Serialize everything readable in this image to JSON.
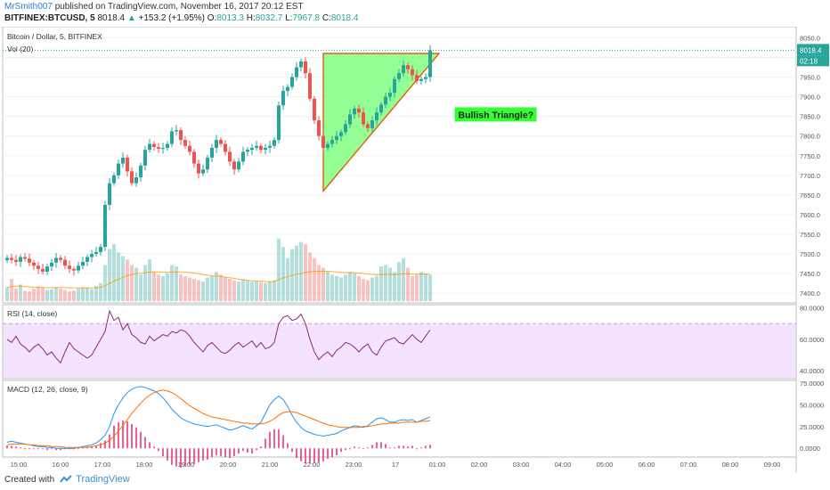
{
  "header": {
    "username": "MrSmith007",
    "published_text": "published on TradingView.com, November 16, 2017 20:12 EST",
    "symbol": "BITFINEX:BTCUSD, 5",
    "last": "8018.4",
    "change": "+153.2 (+1.95%)",
    "o_label": "O:",
    "o_value": "8013.3",
    "h_label": "H:",
    "h_value": "8032.7",
    "l_label": "L:",
    "l_value": "7967.8",
    "c_label": "C:",
    "c_value": "8018.4"
  },
  "footer": {
    "created_with": "Created with",
    "brand": "TradingView"
  },
  "colors": {
    "up": "#26a69a",
    "down": "#ef5350",
    "rsi": "#8b2a7e",
    "rsi_band": "#f3e3ff",
    "macd": "#2196f3",
    "signal": "#ff6d00",
    "hist": "#e91e63",
    "triangle_fill": "#66ff66",
    "triangle_edge": "#e65100",
    "annotation_bg": "#33ff33"
  },
  "chart_data": [
    {
      "type": "candlestick",
      "title": "Bitcoin / Dollar, 5, BITFINEX",
      "volume_label": "Vol (20)",
      "ylim": [
        7380,
        8060
      ],
      "y_ticks": [
        "8050.0",
        "8000.0",
        "7950.0",
        "7900.0",
        "7850.0",
        "7800.0",
        "7750.0",
        "7700.0",
        "7650.0",
        "7600.0",
        "7550.0",
        "7500.0",
        "7450.0",
        "7400.0"
      ],
      "last_price_label": "8018.4",
      "countdown_label": "02:18",
      "x_ticks": [
        "15:00",
        "16:00",
        "17:00",
        "18:00",
        "19:00",
        "20:00",
        "21:00",
        "22:00",
        "23:00",
        "17",
        "01:00",
        "02:00",
        "03:00",
        "04:00",
        "05:00",
        "06:00",
        "07:00",
        "08:00",
        "09:00"
      ],
      "close": [
        7490,
        7485,
        7480,
        7492,
        7488,
        7478,
        7470,
        7462,
        7455,
        7468,
        7478,
        7490,
        7485,
        7470,
        7462,
        7458,
        7470,
        7480,
        7492,
        7500,
        7505,
        7518,
        7625,
        7680,
        7700,
        7730,
        7745,
        7710,
        7680,
        7695,
        7725,
        7765,
        7780,
        7772,
        7768,
        7770,
        7780,
        7812,
        7815,
        7790,
        7775,
        7760,
        7730,
        7705,
        7715,
        7745,
        7770,
        7790,
        7780,
        7760,
        7735,
        7715,
        7735,
        7760,
        7765,
        7770,
        7775,
        7765,
        7770,
        7775,
        7790,
        7878,
        7915,
        7925,
        7950,
        7975,
        7990,
        7960,
        7895,
        7840,
        7800,
        7770,
        7780,
        7790,
        7800,
        7810,
        7830,
        7855,
        7870,
        7860,
        7830,
        7820,
        7840,
        7860,
        7880,
        7900,
        7910,
        7945,
        7960,
        7980,
        7970,
        7955,
        7940,
        7945,
        7950,
        8018
      ],
      "volume_max": 1000,
      "volume": [
        200,
        320,
        180,
        240,
        150,
        140,
        180,
        210,
        190,
        160,
        170,
        200,
        180,
        160,
        140,
        150,
        180,
        200,
        190,
        170,
        220,
        260,
        520,
        750,
        820,
        700,
        650,
        600,
        520,
        480,
        380,
        520,
        600,
        420,
        380,
        360,
        400,
        520,
        500,
        380,
        360,
        340,
        320,
        300,
        280,
        340,
        360,
        420,
        380,
        340,
        320,
        300,
        280,
        320,
        300,
        280,
        290,
        270,
        260,
        280,
        300,
        900,
        780,
        620,
        750,
        800,
        850,
        820,
        700,
        620,
        520,
        480,
        420,
        380,
        360,
        340,
        380,
        420,
        400,
        360,
        320,
        300,
        340,
        360,
        500,
        520,
        480,
        420,
        560,
        620,
        480,
        360,
        380,
        420,
        400,
        380
      ],
      "volume_ma": [
        200,
        210,
        215,
        218,
        212,
        206,
        200,
        198,
        196,
        194,
        192,
        195,
        196,
        195,
        193,
        190,
        189,
        191,
        192,
        190,
        192,
        198,
        222,
        258,
        290,
        315,
        342,
        366,
        380,
        394,
        400,
        410,
        420,
        422,
        420,
        418,
        416,
        420,
        422,
        420,
        418,
        412,
        404,
        394,
        382,
        374,
        366,
        360,
        352,
        344,
        336,
        328,
        316,
        308,
        300,
        294,
        290,
        286,
        282,
        280,
        282,
        310,
        336,
        352,
        368,
        384,
        400,
        414,
        422,
        428,
        430,
        430,
        428,
        424,
        420,
        414,
        410,
        410,
        408,
        404,
        398,
        390,
        384,
        380,
        382,
        384,
        384,
        382,
        386,
        392,
        392,
        390,
        388,
        388,
        388,
        386
      ],
      "annotation": "Bullish Triangle?",
      "triangle_points": [
        [
          71,
          8010
        ],
        [
          71,
          7660
        ],
        [
          97,
          8010
        ]
      ]
    },
    {
      "type": "line",
      "title": "RSI (14, close)",
      "ylim": [
        35,
        82
      ],
      "y_ticks": [
        "80.0000",
        "60.0000",
        "40.0000"
      ],
      "band": [
        30,
        70
      ],
      "values": [
        60,
        58,
        62,
        57,
        55,
        52,
        55,
        57,
        54,
        50,
        52,
        48,
        45,
        52,
        58,
        54,
        52,
        50,
        48,
        50,
        55,
        60,
        65,
        78,
        72,
        74,
        66,
        70,
        63,
        61,
        58,
        57,
        62,
        59,
        61,
        63,
        62,
        65,
        64,
        66,
        65,
        62,
        58,
        55,
        52,
        56,
        58,
        55,
        52,
        51,
        53,
        56,
        58,
        55,
        57,
        59,
        55,
        58,
        54,
        55,
        58,
        70,
        74,
        75,
        72,
        73,
        76,
        70,
        60,
        52,
        47,
        50,
        52,
        49,
        53,
        55,
        58,
        57,
        55,
        52,
        55,
        57,
        52,
        50,
        55,
        59,
        60,
        61,
        58,
        57,
        60,
        63,
        60,
        58,
        62,
        66
      ]
    },
    {
      "type": "line",
      "title": "MACD (12, 26, close, 9)",
      "ylim": [
        -10,
        78
      ],
      "y_ticks": [
        "75.0000",
        "50.0000",
        "25.0000",
        "0.0000"
      ],
      "series": [
        {
          "name": "MACD",
          "values": [
            7,
            8,
            7,
            6,
            5,
            4,
            3,
            2,
            2,
            1,
            1,
            0,
            0,
            0,
            0,
            0,
            1,
            2,
            3,
            4,
            6,
            10,
            15,
            25,
            40,
            50,
            58,
            64,
            68,
            70,
            71,
            70,
            68,
            66,
            63,
            58,
            52,
            45,
            40,
            35,
            32,
            30,
            28,
            27,
            26,
            25,
            26,
            27,
            25,
            23,
            21,
            22,
            24,
            26,
            24,
            22,
            26,
            30,
            40,
            50,
            56,
            60,
            56,
            48,
            38,
            30,
            24,
            20,
            18,
            16,
            15,
            14,
            15,
            16,
            17,
            20,
            22,
            24,
            26,
            25,
            24,
            26,
            30,
            34,
            35,
            33,
            30,
            30,
            32,
            33,
            32,
            33,
            30,
            32,
            34,
            36
          ]
        },
        {
          "name": "Signal",
          "values": [
            4,
            5,
            5,
            5,
            5,
            4,
            4,
            3,
            3,
            3,
            2,
            2,
            2,
            1,
            1,
            1,
            1,
            1,
            1,
            2,
            3,
            4,
            6,
            9,
            14,
            20,
            26,
            33,
            40,
            46,
            52,
            57,
            61,
            64,
            66,
            67,
            66,
            64,
            61,
            57,
            53,
            49,
            46,
            43,
            40,
            38,
            36,
            35,
            34,
            33,
            32,
            31,
            30,
            29,
            29,
            28,
            28,
            28,
            29,
            31,
            34,
            38,
            41,
            42,
            42,
            41,
            39,
            37,
            35,
            33,
            31,
            29,
            27,
            26,
            25,
            24,
            24,
            24,
            24,
            24,
            25,
            25,
            26,
            27,
            28,
            28,
            29,
            29,
            29,
            30,
            30,
            30,
            30,
            31,
            31,
            32
          ]
        }
      ],
      "histogram": [
        3,
        3,
        2,
        1,
        0,
        0,
        -1,
        -1,
        -1,
        -2,
        -1,
        -2,
        -2,
        -1,
        -1,
        -1,
        0,
        1,
        2,
        2,
        3,
        6,
        9,
        16,
        26,
        30,
        32,
        31,
        28,
        24,
        19,
        13,
        7,
        2,
        -3,
        -9,
        -14,
        -19,
        -21,
        -22,
        -21,
        -19,
        -18,
        -16,
        -14,
        -13,
        -10,
        -8,
        -9,
        -10,
        -11,
        -9,
        -6,
        -3,
        -5,
        -6,
        -2,
        2,
        11,
        19,
        22,
        22,
        15,
        6,
        -4,
        -11,
        -15,
        -17,
        -17,
        -17,
        -16,
        -15,
        -12,
        -10,
        -8,
        -4,
        -2,
        0,
        2,
        1,
        -1,
        1,
        4,
        7,
        7,
        5,
        1,
        1,
        3,
        3,
        2,
        3,
        0,
        1,
        3,
        4
      ]
    }
  ]
}
